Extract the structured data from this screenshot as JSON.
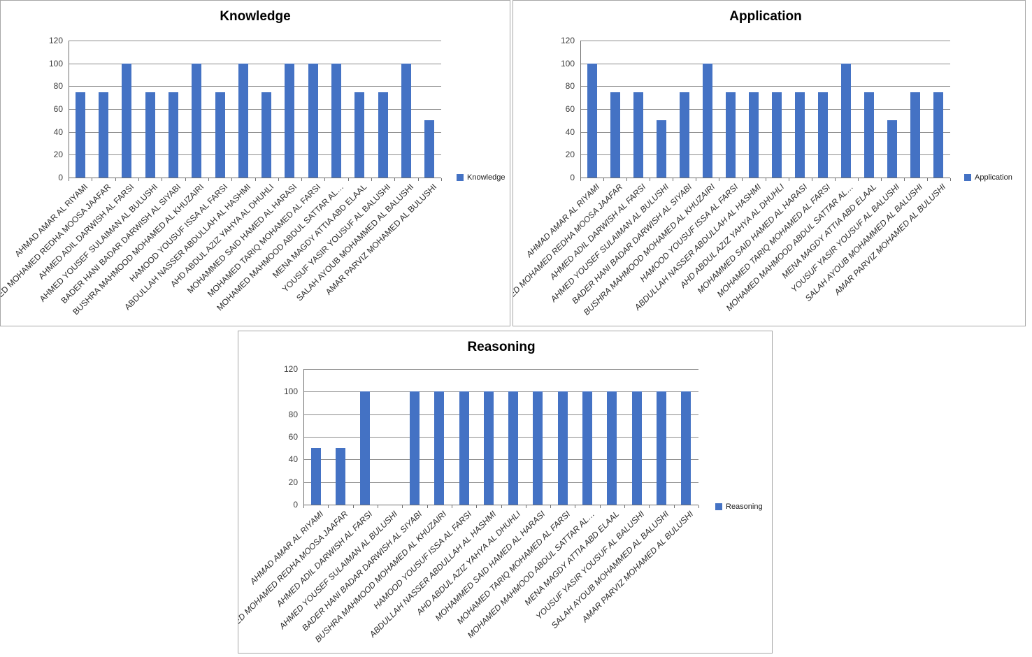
{
  "colors": {
    "bar": "#4472C4",
    "gridline": "#8C8C8C",
    "axis": "#6F6F6F",
    "panel_border": "#A6A6A6",
    "title_text": "#000000",
    "tick_label_text": "#3D3D3D",
    "category_label_text": "#2B2B2B",
    "background": "#FFFFFF"
  },
  "chart_data": [
    {
      "type": "bar",
      "title": "Knowledge",
      "legend": [
        "Knowledge"
      ],
      "legend_position": "right",
      "grid": true,
      "ylim": [
        0,
        120
      ],
      "y_ticks": [
        0,
        20,
        40,
        60,
        80,
        100,
        120
      ],
      "label_style": "normal",
      "categories": [
        "AHMAD AMAR AL RIYAMI",
        "ED MOHAMED REDHA MOOSA JAAFAR",
        "AHMED ADIL DARWISH AL FARSI",
        "AHMED YOUSEF SULAIMAN AL BULUSHI",
        "BADER HANI BADAR DARWISH AL SIYABI",
        "BUSHRA MAHMOOD MOHAMED AL KHUZAIRI",
        "HAMOOD YOUSUF ISSA AL FARSI",
        "ABDULLAH NASSER ABDULLAH AL HASHMI",
        "AHD ABDUL AZIZ YAHYA AL DHUHLI",
        "MOHAMMED SAID HAMED AL HARASI",
        "MOHAMED TARIQ MOHAMED AL FARSI",
        "MOHAMED MAHMOOD ABDUL SATTAR AL…",
        "MENA MAGDY ATTIA ABD ELAAL",
        "YOUSUF YASIR YOUSUF AL BALUSHI",
        "SALAH AYOUB MOHAMMED AL BALUSHI",
        "AMAR PARVIZ MOHAMED AL BULUSHI"
      ],
      "values": [
        75,
        75,
        100,
        75,
        75,
        100,
        75,
        100,
        75,
        100,
        100,
        100,
        75,
        75,
        100,
        50
      ]
    },
    {
      "type": "bar",
      "title": "Application",
      "legend": [
        "Application"
      ],
      "legend_position": "right",
      "grid": true,
      "ylim": [
        0,
        120
      ],
      "y_ticks": [
        0,
        20,
        40,
        60,
        80,
        100,
        120
      ],
      "label_style": "italic",
      "categories": [
        "AHMAD AMAR AL RIYAMI",
        "ED MOHAMED REDHA MOOSA JAAFAR",
        "AHMED ADIL DARWISH AL FARSI",
        "AHMED YOUSEF SULAIMAN AL BULUSHI",
        "BADER HANI BADAR DARWISH AL SIYABI",
        "BUSHRA MAHMOOD MOHAMED AL KHUZAIRI",
        "HAMOOD YOUSUF ISSA AL FARSI",
        "ABDULLAH NASSER ABDULLAH AL HASHMI",
        "AHD ABDUL AZIZ YAHYA AL DHUHLI",
        "MOHAMMED SAID HAMED AL HARASI",
        "MOHAMED TARIQ MOHAMED AL FARSI",
        "MOHAMED MAHMOOD ABDUL SATTAR AL…",
        "MENA MAGDY ATTIA ABD ELAAL",
        "YOUSUF YASIR YOUSUF AL BALUSHI",
        "SALAH AYOUB MOHAMMED AL BALUSHI",
        "AMAR PARVIZ MOHAMED AL BULUSHI"
      ],
      "values": [
        100,
        75,
        75,
        50,
        75,
        100,
        75,
        75,
        75,
        75,
        75,
        100,
        75,
        50,
        75,
        75
      ]
    },
    {
      "type": "bar",
      "title": "Reasoning",
      "legend": [
        "Reasoning"
      ],
      "legend_position": "right",
      "grid": true,
      "ylim": [
        0,
        120
      ],
      "y_ticks": [
        0,
        20,
        40,
        60,
        80,
        100,
        120
      ],
      "label_style": "italic",
      "categories": [
        "AHMAD AMAR AL RIYAMI",
        "ED MOHAMED REDHA MOOSA JAAFAR",
        "AHMED ADIL DARWISH AL FARSI",
        "AHMED YOUSEF SULAIMAN AL BULUSHI",
        "BADER HANI BADAR DARWISH AL SIYABI",
        "BUSHRA MAHMOOD MOHAMED AL KHUZAIRI",
        "HAMOOD YOUSUF ISSA AL FARSI",
        "ABDULLAH NASSER ABDULLAH AL HASHMI",
        "AHD ABDUL AZIZ YAHYA AL DHUHLI",
        "MOHAMMED SAID HAMED AL HARASI",
        "MOHAMED TARIQ MOHAMED AL FARSI",
        "MOHAMED MAHMOOD ABDUL SATTAR AL…",
        "MENA MAGDY ATTIA ABD ELAAL",
        "YOUSUF YASIR YOUSUF AL BALUSHI",
        "SALAH AYOUB MOHAMMED AL BALUSHI",
        "AMAR PARVIZ MOHAMED AL BULUSHI"
      ],
      "values": [
        50,
        50,
        100,
        0,
        100,
        100,
        100,
        100,
        100,
        100,
        100,
        100,
        100,
        100,
        100,
        100
      ]
    }
  ]
}
